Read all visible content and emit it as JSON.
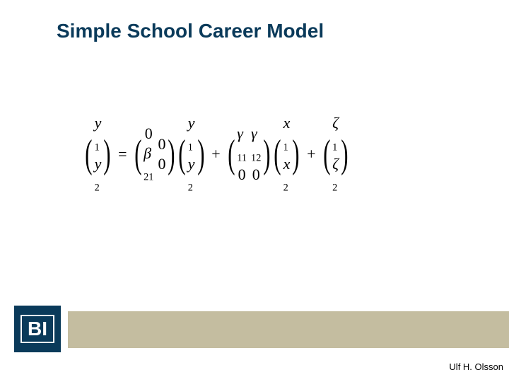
{
  "title": "Simple School Career Model",
  "author": "Ulf H. Olsson",
  "logo_text": "BI",
  "colors": {
    "title_color": "#0a3a5a",
    "logo_bg": "#0a3a5a",
    "logo_fg": "#ffffff",
    "footer_bar": "#c4bda0",
    "background": "#ffffff",
    "equation_color": "#000000"
  },
  "equation": {
    "vec_y": [
      "y₁",
      "y₂"
    ],
    "mat_B": [
      [
        "0",
        "0"
      ],
      [
        "β₂₁",
        "0"
      ]
    ],
    "vec_y2": [
      "y₁",
      "y₂"
    ],
    "mat_G": [
      [
        "γ₁₁",
        "γ₁₂"
      ],
      [
        "0",
        "0"
      ]
    ],
    "vec_x": [
      "x₁",
      "x₂"
    ],
    "vec_z": [
      "ζ₁",
      "ζ₂"
    ]
  },
  "labels": {
    "eq": "=",
    "plus": "+"
  }
}
